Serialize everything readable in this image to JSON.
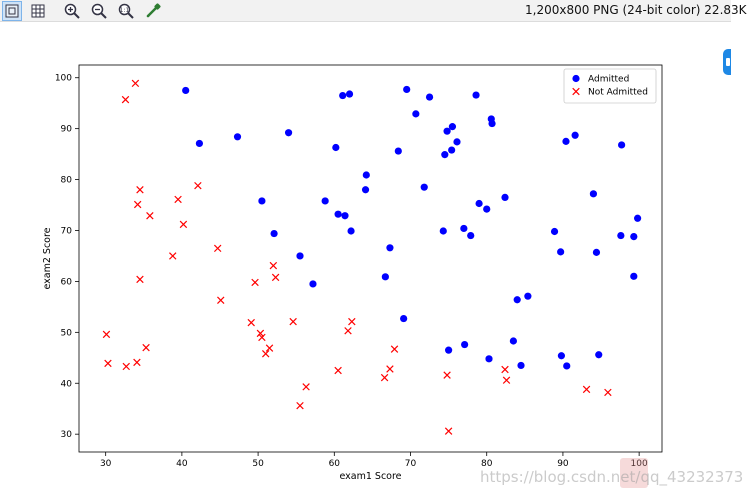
{
  "toolbar": {
    "status": "1,200x800 PNG (24-bit color) 22.83K",
    "buttons": [
      {
        "name": "fit-window-icon",
        "active": true
      },
      {
        "name": "grid-icon",
        "active": false
      },
      {
        "name": "zoom-in-icon",
        "active": false
      },
      {
        "name": "zoom-out-icon",
        "active": false
      },
      {
        "name": "zoom-actual-icon",
        "active": false
      },
      {
        "name": "eyedropper-icon",
        "active": false
      }
    ]
  },
  "watermark": "https://blog.csdn.net/qq_43232373",
  "chart_data": {
    "type": "scatter",
    "xlabel": "exam1 Score",
    "ylabel": "exam2 Score",
    "xlim": [
      26.5,
      103
    ],
    "ylim": [
      26.5,
      102.5
    ],
    "xticks": [
      30,
      40,
      50,
      60,
      70,
      80,
      90,
      100
    ],
    "yticks": [
      30,
      40,
      50,
      60,
      70,
      80,
      90,
      100
    ],
    "legend_position": "top-right",
    "series": [
      {
        "name": "Admitted",
        "marker": "circle",
        "color": "#0000ff",
        "points": [
          [
            40.5,
            97.5
          ],
          [
            42.3,
            87.1
          ],
          [
            47.3,
            88.4
          ],
          [
            50.5,
            75.8
          ],
          [
            52.1,
            69.4
          ],
          [
            54.0,
            89.2
          ],
          [
            55.5,
            65.0
          ],
          [
            57.2,
            59.5
          ],
          [
            58.8,
            75.8
          ],
          [
            60.2,
            86.3
          ],
          [
            60.5,
            73.2
          ],
          [
            61.1,
            96.5
          ],
          [
            61.4,
            72.9
          ],
          [
            62.0,
            96.8
          ],
          [
            62.2,
            69.9
          ],
          [
            64.2,
            80.9
          ],
          [
            64.1,
            78.0
          ],
          [
            66.7,
            60.9
          ],
          [
            67.3,
            66.6
          ],
          [
            68.4,
            85.6
          ],
          [
            69.1,
            52.7
          ],
          [
            69.5,
            97.7
          ],
          [
            70.7,
            92.9
          ],
          [
            71.8,
            78.5
          ],
          [
            72.5,
            96.2
          ],
          [
            74.3,
            69.9
          ],
          [
            74.5,
            84.9
          ],
          [
            74.8,
            89.5
          ],
          [
            75.0,
            46.5
          ],
          [
            75.4,
            85.8
          ],
          [
            75.5,
            90.4
          ],
          [
            76.1,
            87.4
          ],
          [
            77.0,
            70.4
          ],
          [
            77.1,
            47.6
          ],
          [
            77.9,
            69.0
          ],
          [
            78.6,
            96.6
          ],
          [
            79.0,
            75.3
          ],
          [
            80.0,
            74.2
          ],
          [
            80.3,
            44.8
          ],
          [
            80.6,
            91.9
          ],
          [
            80.7,
            91.0
          ],
          [
            82.4,
            76.5
          ],
          [
            83.5,
            48.3
          ],
          [
            84.0,
            56.4
          ],
          [
            84.5,
            43.5
          ],
          [
            85.4,
            57.1
          ],
          [
            88.9,
            69.8
          ],
          [
            89.7,
            65.8
          ],
          [
            89.8,
            45.4
          ],
          [
            90.4,
            87.5
          ],
          [
            90.5,
            43.4
          ],
          [
            91.6,
            88.7
          ],
          [
            94.0,
            77.2
          ],
          [
            94.4,
            65.7
          ],
          [
            94.7,
            45.6
          ],
          [
            97.6,
            69.0
          ],
          [
            97.7,
            86.8
          ],
          [
            99.3,
            68.8
          ],
          [
            99.3,
            61.0
          ],
          [
            99.8,
            72.4
          ]
        ]
      },
      {
        "name": "Not Admitted",
        "marker": "x",
        "color": "#ff0000",
        "points": [
          [
            30.1,
            49.6
          ],
          [
            30.3,
            43.9
          ],
          [
            32.6,
            95.7
          ],
          [
            32.7,
            43.3
          ],
          [
            33.9,
            98.9
          ],
          [
            34.1,
            44.1
          ],
          [
            34.2,
            75.1
          ],
          [
            34.5,
            60.4
          ],
          [
            34.5,
            78.0
          ],
          [
            35.3,
            47.0
          ],
          [
            35.8,
            72.9
          ],
          [
            38.8,
            65.0
          ],
          [
            39.5,
            76.1
          ],
          [
            40.2,
            71.2
          ],
          [
            42.1,
            78.8
          ],
          [
            44.7,
            66.5
          ],
          [
            45.1,
            56.3
          ],
          [
            49.1,
            51.9
          ],
          [
            49.6,
            59.8
          ],
          [
            50.3,
            49.8
          ],
          [
            50.5,
            49.0
          ],
          [
            51.0,
            45.8
          ],
          [
            51.5,
            46.9
          ],
          [
            52.0,
            63.1
          ],
          [
            52.3,
            60.8
          ],
          [
            54.6,
            52.1
          ],
          [
            55.5,
            35.6
          ],
          [
            56.3,
            39.3
          ],
          [
            60.5,
            42.5
          ],
          [
            61.8,
            50.3
          ],
          [
            62.3,
            52.1
          ],
          [
            66.6,
            41.1
          ],
          [
            67.3,
            42.8
          ],
          [
            67.9,
            46.7
          ],
          [
            74.8,
            41.6
          ],
          [
            75.0,
            30.6
          ],
          [
            82.4,
            42.7
          ],
          [
            82.6,
            40.6
          ],
          [
            93.1,
            38.8
          ],
          [
            95.9,
            38.2
          ]
        ]
      }
    ]
  }
}
